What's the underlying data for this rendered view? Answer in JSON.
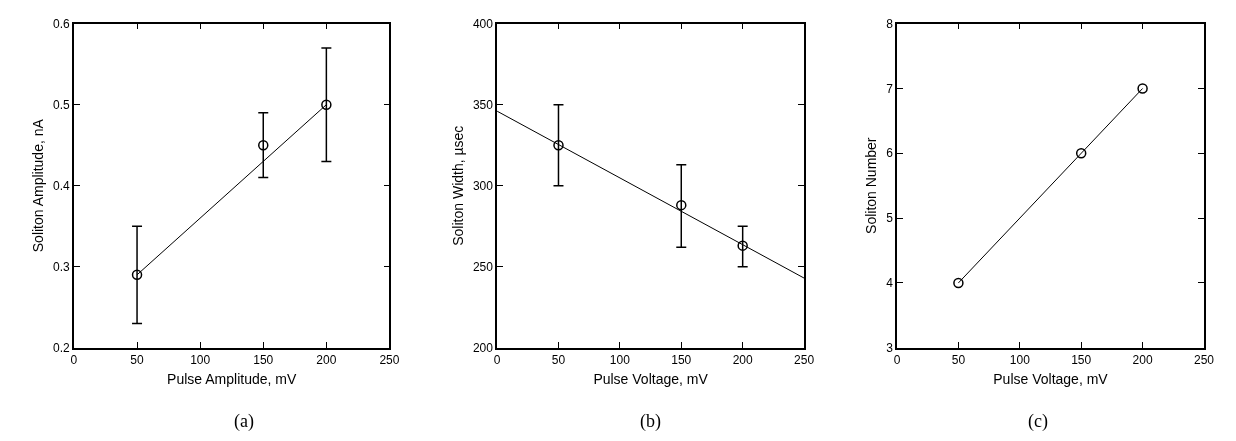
{
  "chart_data": [
    {
      "type": "scatter",
      "xlabel": "Pulse Amplitude, mV",
      "ylabel": "Soliton Amplitude, nA",
      "annotations": [
        "(a)"
      ],
      "xlim": [
        0,
        250
      ],
      "xticks": [
        0,
        50,
        100,
        150,
        200,
        250
      ],
      "ylim": [
        0.2,
        0.6
      ],
      "yticks": [
        0.2,
        0.3,
        0.4,
        0.5,
        0.6
      ],
      "color": "#000000",
      "series": [
        {
          "marker": "circle",
          "x": [
            50,
            150,
            200
          ],
          "values": [
            0.29,
            0.45,
            0.5
          ],
          "errors": [
            [
              0.23,
              0.35
            ],
            [
              0.41,
              0.49
            ],
            [
              0.43,
              0.57
            ]
          ]
        },
        {
          "type": "line",
          "marker": "none",
          "x": [
            50,
            200
          ],
          "values": [
            0.29,
            0.5
          ]
        }
      ]
    },
    {
      "type": "scatter",
      "xlabel": "Pulse Voltage, mV",
      "ylabel": "Soliton Width, µsec",
      "annotations": [
        "(b)"
      ],
      "xlim": [
        0,
        250
      ],
      "xticks": [
        0,
        50,
        100,
        150,
        200,
        250
      ],
      "ylim": [
        200,
        400
      ],
      "yticks": [
        200,
        250,
        300,
        350,
        400
      ],
      "color": "#000000",
      "series": [
        {
          "marker": "circle",
          "x": [
            50,
            150,
            200
          ],
          "values": [
            325,
            288,
            263
          ],
          "errors": [
            [
              300,
              350
            ],
            [
              262,
              313
            ],
            [
              250,
              275
            ]
          ]
        },
        {
          "type": "line",
          "marker": "none",
          "x": [
            0,
            250
          ],
          "values": [
            346,
            243
          ]
        }
      ]
    },
    {
      "type": "scatter",
      "xlabel": "Pulse Voltage, mV",
      "ylabel": "Soliton Number",
      "annotations": [
        "(c)"
      ],
      "xlim": [
        0,
        250
      ],
      "xticks": [
        0,
        50,
        100,
        150,
        200,
        250
      ],
      "ylim": [
        3,
        8
      ],
      "yticks": [
        3,
        4,
        5,
        6,
        7,
        8
      ],
      "color": "#000000",
      "series": [
        {
          "marker": "circle",
          "x": [
            50,
            150,
            200
          ],
          "values": [
            4,
            6,
            7
          ]
        },
        {
          "type": "line",
          "marker": "none",
          "x": [
            50,
            200
          ],
          "values": [
            4,
            7
          ]
        }
      ]
    }
  ]
}
